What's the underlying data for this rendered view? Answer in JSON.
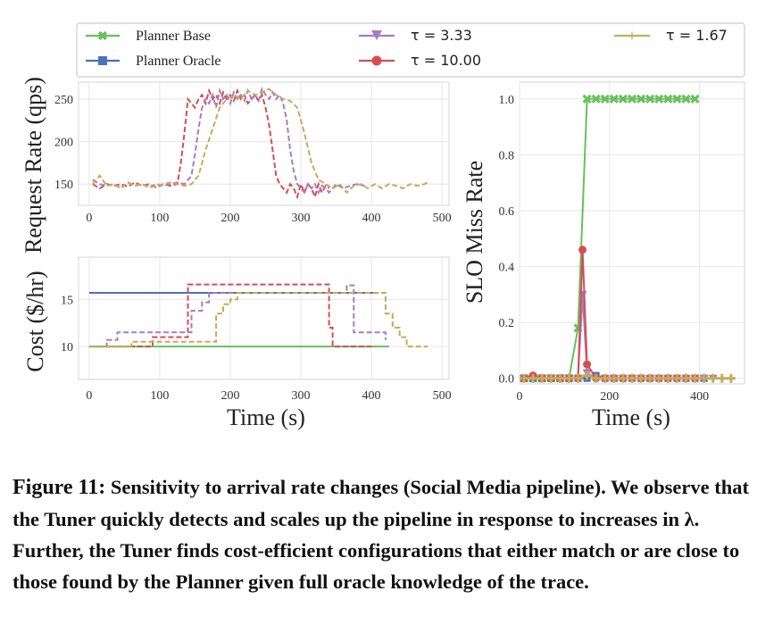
{
  "legend": {
    "items": [
      {
        "label": "Planner Base",
        "color": "#6abf5e",
        "marker": "x"
      },
      {
        "label": "Planner Oracle",
        "color": "#4a72b8",
        "marker": "square"
      },
      {
        "label": "τ = 3.33",
        "color": "#a87cc4",
        "marker": "triangle-down"
      },
      {
        "label": "τ = 10.00",
        "color": "#d44e52",
        "marker": "circle"
      },
      {
        "label": "τ = 1.67",
        "color": "#c8aa5a",
        "marker": "plus"
      }
    ]
  },
  "caption": {
    "label": "Figure 11:",
    "text": "Sensitivity to arrival rate changes (Social Media pipeline). We observe that the Tuner quickly detects and scales up the pipeline in response to increases in λ. Further, the Tuner finds cost-efficient configurations that either match or are close to those found by the Planner given full oracle knowledge of the trace."
  },
  "chart_data": [
    {
      "type": "line",
      "id": "request-rate",
      "ylabel": "Request Rate (qps)",
      "xlabel": "",
      "xlim": [
        -15,
        510
      ],
      "ylim": [
        125,
        270
      ],
      "xticks": [
        0,
        100,
        200,
        300,
        400,
        500
      ],
      "yticks": [
        150,
        200,
        250
      ],
      "grid": true,
      "series": [
        {
          "name": "τ = 10.00",
          "color": "#d44e52",
          "style": "dashed",
          "x": [
            5,
            15,
            25,
            35,
            45,
            55,
            65,
            75,
            85,
            95,
            105,
            115,
            125,
            130,
            135,
            140,
            145,
            150,
            155,
            160,
            165,
            170,
            175,
            180,
            185,
            190,
            195,
            200,
            205,
            210,
            215,
            220,
            225,
            230,
            235,
            240,
            245,
            250,
            255,
            260,
            265,
            270,
            275,
            280,
            285,
            290,
            295,
            300,
            305,
            310,
            315,
            320,
            325,
            330,
            335,
            340
          ],
          "y": [
            150,
            145,
            150,
            148,
            150,
            147,
            152,
            148,
            150,
            146,
            150,
            148,
            150,
            175,
            210,
            250,
            245,
            240,
            250,
            255,
            245,
            260,
            250,
            255,
            245,
            258,
            250,
            255,
            248,
            260,
            250,
            255,
            245,
            250,
            255,
            248,
            255,
            240,
            220,
            190,
            160,
            150,
            145,
            140,
            150,
            145,
            135,
            150,
            140,
            150,
            145,
            135,
            150,
            140,
            148,
            145
          ]
        },
        {
          "name": "τ = 3.33",
          "color": "#a87cc4",
          "style": "dashed",
          "x": [
            5,
            15,
            25,
            35,
            45,
            55,
            65,
            75,
            85,
            95,
            105,
            115,
            125,
            135,
            145,
            150,
            155,
            160,
            165,
            170,
            175,
            180,
            185,
            190,
            195,
            200,
            205,
            210,
            215,
            220,
            225,
            230,
            235,
            240,
            245,
            250,
            255,
            260,
            265,
            270,
            275,
            280,
            285,
            290,
            295,
            300,
            305,
            310,
            315,
            320,
            325,
            330,
            335,
            340,
            350,
            360,
            370,
            380,
            390
          ],
          "y": [
            155,
            150,
            148,
            150,
            145,
            152,
            148,
            150,
            146,
            150,
            148,
            150,
            152,
            150,
            160,
            185,
            215,
            240,
            250,
            245,
            255,
            240,
            260,
            250,
            255,
            245,
            258,
            250,
            255,
            248,
            260,
            250,
            255,
            248,
            262,
            255,
            250,
            258,
            250,
            255,
            245,
            225,
            190,
            165,
            150,
            145,
            140,
            150,
            145,
            150,
            140,
            148,
            145,
            140,
            150,
            145,
            148,
            150,
            148
          ]
        },
        {
          "name": "τ = 1.67",
          "color": "#c8aa5a",
          "style": "dashed",
          "x": [
            5,
            15,
            25,
            35,
            45,
            55,
            65,
            75,
            85,
            95,
            105,
            115,
            125,
            135,
            145,
            155,
            165,
            175,
            185,
            195,
            205,
            215,
            225,
            235,
            245,
            255,
            265,
            275,
            285,
            295,
            305,
            315,
            325,
            335,
            345,
            355,
            365,
            375,
            385,
            395,
            405,
            415,
            425,
            435,
            445,
            455,
            465,
            475,
            480
          ],
          "y": [
            150,
            160,
            148,
            150,
            145,
            152,
            148,
            150,
            146,
            148,
            150,
            152,
            150,
            148,
            150,
            160,
            190,
            215,
            240,
            250,
            255,
            250,
            260,
            255,
            258,
            262,
            255,
            250,
            248,
            240,
            210,
            175,
            155,
            150,
            145,
            150,
            140,
            148,
            150,
            145,
            150,
            145,
            150,
            148,
            145,
            150,
            148,
            150,
            152
          ]
        }
      ]
    },
    {
      "type": "line",
      "id": "cost",
      "ylabel": "Cost ($/hr)",
      "xlabel": "Time (s)",
      "xlim": [
        -15,
        510
      ],
      "ylim": [
        6.5,
        19.5
      ],
      "xticks": [
        0,
        100,
        200,
        300,
        400,
        500
      ],
      "yticks": [
        10,
        15
      ],
      "grid": true,
      "series": [
        {
          "name": "Planner Base",
          "color": "#6abf5e",
          "style": "solid",
          "step": true,
          "x": [
            0,
            425
          ],
          "y": [
            10,
            10
          ]
        },
        {
          "name": "Planner Oracle",
          "color": "#4a72b8",
          "style": "solid",
          "step": true,
          "x": [
            0,
            410
          ],
          "y": [
            15.7,
            15.7
          ]
        },
        {
          "name": "τ = 10.00",
          "color": "#d44e52",
          "style": "dashed",
          "step": true,
          "x": [
            0,
            90,
            140,
            340,
            345,
            400
          ],
          "y": [
            10,
            11,
            16.6,
            12,
            10,
            10
          ]
        },
        {
          "name": "τ = 3.33",
          "color": "#a87cc4",
          "style": "dashed",
          "step": true,
          "x": [
            0,
            25,
            40,
            145,
            160,
            170,
            365,
            375,
            420
          ],
          "y": [
            10,
            10.7,
            11.5,
            13.8,
            14.7,
            15.7,
            16.5,
            11.5,
            10.7
          ]
        },
        {
          "name": "τ = 1.67",
          "color": "#c8aa5a",
          "style": "dashed",
          "step": true,
          "x": [
            0,
            60,
            180,
            190,
            200,
            210,
            420,
            430,
            440,
            450,
            480
          ],
          "y": [
            10,
            10.5,
            13.5,
            14.5,
            15,
            15.7,
            13.5,
            12,
            11,
            10,
            10
          ]
        }
      ]
    },
    {
      "type": "line",
      "id": "slo-miss-rate",
      "ylabel": "SLO Miss Rate",
      "xlabel": "Time (s)",
      "xlim": [
        0,
        500
      ],
      "ylim": [
        -0.02,
        1.06
      ],
      "xticks": [
        0,
        200,
        400
      ],
      "yticks": [
        0.0,
        0.2,
        0.4,
        0.6,
        0.8,
        1.0
      ],
      "grid": true,
      "series": [
        {
          "name": "Planner Base",
          "color": "#6abf5e",
          "style": "solid",
          "marker": "x",
          "x": [
            10,
            30,
            50,
            70,
            90,
            110,
            130,
            150,
            170,
            190,
            210,
            230,
            250,
            270,
            290,
            310,
            330,
            350,
            370,
            390
          ],
          "y": [
            0,
            0,
            0,
            0,
            0,
            0,
            0.18,
            1.0,
            1.0,
            1.0,
            1.0,
            1.0,
            1.0,
            1.0,
            1.0,
            1.0,
            1.0,
            1.0,
            1.0,
            1.0
          ]
        },
        {
          "name": "Planner Oracle",
          "color": "#4a72b8",
          "style": "solid",
          "marker": "square",
          "x": [
            10,
            30,
            50,
            70,
            90,
            110,
            130,
            150,
            170,
            190,
            210,
            230,
            250,
            270,
            290,
            310,
            330,
            350,
            370,
            390,
            410
          ],
          "y": [
            0,
            0,
            0,
            0,
            0,
            0,
            0,
            0,
            0.01,
            0,
            0,
            0,
            0,
            0,
            0,
            0,
            0,
            0,
            0,
            0,
            0
          ]
        },
        {
          "name": "τ = 3.33",
          "color": "#a87cc4",
          "style": "solid",
          "marker": "triangle-down",
          "x": [
            10,
            30,
            50,
            70,
            90,
            110,
            130,
            140,
            150,
            170,
            190,
            210,
            230,
            250,
            270,
            290,
            310,
            330,
            350,
            370,
            390,
            410,
            430
          ],
          "y": [
            0,
            0,
            0,
            0,
            0,
            0,
            0,
            0.3,
            0.02,
            0,
            0,
            0,
            0,
            0,
            0,
            0,
            0,
            0,
            0,
            0,
            0,
            0,
            0
          ]
        },
        {
          "name": "τ = 10.00",
          "color": "#d44e52",
          "style": "solid",
          "marker": "circle",
          "x": [
            10,
            30,
            50,
            70,
            90,
            110,
            130,
            140,
            150,
            170,
            190,
            210,
            230,
            250,
            270,
            290,
            310,
            330,
            350,
            370,
            390
          ],
          "y": [
            0,
            0.01,
            0,
            0,
            0,
            0,
            0,
            0.46,
            0.05,
            0,
            0,
            0,
            0,
            0,
            0,
            0,
            0,
            0,
            0,
            0,
            0
          ]
        },
        {
          "name": "τ = 1.67",
          "color": "#c8aa5a",
          "style": "solid",
          "marker": "plus",
          "x": [
            10,
            30,
            50,
            70,
            90,
            110,
            130,
            150,
            170,
            190,
            210,
            230,
            250,
            270,
            290,
            310,
            330,
            350,
            370,
            390,
            410,
            430,
            450,
            470
          ],
          "y": [
            0,
            0,
            0,
            0,
            0,
            0,
            0,
            0.01,
            0,
            0,
            0,
            0,
            0,
            0,
            0,
            0,
            0,
            0,
            0,
            0,
            0,
            0,
            0,
            0
          ]
        }
      ]
    }
  ]
}
